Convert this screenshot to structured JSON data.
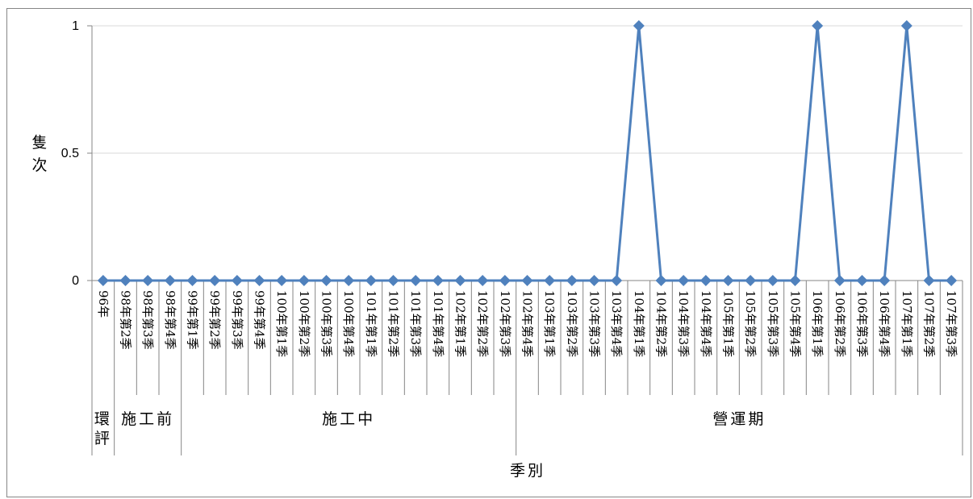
{
  "chart_data": {
    "type": "line",
    "title": "",
    "ylabel": "隻次",
    "xlabel": "季別",
    "ylim": [
      0,
      1
    ],
    "yticks": [
      "0",
      "0.5",
      "1"
    ],
    "grid": true,
    "line_color": "#4F81BD",
    "categories": [
      "96年",
      "98年第2季",
      "98年第3季",
      "98年第4季",
      "99年第1季",
      "99年第2季",
      "99年第3季",
      "99年第4季",
      "100年第1季",
      "100年第2季",
      "100年第3季",
      "100年第4季",
      "101年第1季",
      "101年第2季",
      "101年第3季",
      "101年第4季",
      "102年第1季",
      "102年第2季",
      "102年第3季",
      "102年第4季",
      "103年第1季",
      "103年第2季",
      "103年第3季",
      "103年第4季",
      "104年第1季",
      "104年第2季",
      "104年第3季",
      "104年第4季",
      "105年第1季",
      "105年第2季",
      "105年第3季",
      "105年第4季",
      "106年第1季",
      "106年第2季",
      "106年第3季",
      "106年第4季",
      "107年第1季",
      "107年第2季",
      "107年第3季"
    ],
    "values": [
      0,
      0,
      0,
      0,
      0,
      0,
      0,
      0,
      0,
      0,
      0,
      0,
      0,
      0,
      0,
      0,
      0,
      0,
      0,
      0,
      0,
      0,
      0,
      0,
      1,
      0,
      0,
      0,
      0,
      0,
      0,
      0,
      1,
      0,
      0,
      0,
      1,
      0,
      0
    ],
    "groups": [
      {
        "label": "環評",
        "start": 0,
        "end": 0
      },
      {
        "label": "施工前",
        "start": 1,
        "end": 3
      },
      {
        "label": "施工中",
        "start": 4,
        "end": 18
      },
      {
        "label": "營運期",
        "start": 19,
        "end": 38
      }
    ]
  }
}
